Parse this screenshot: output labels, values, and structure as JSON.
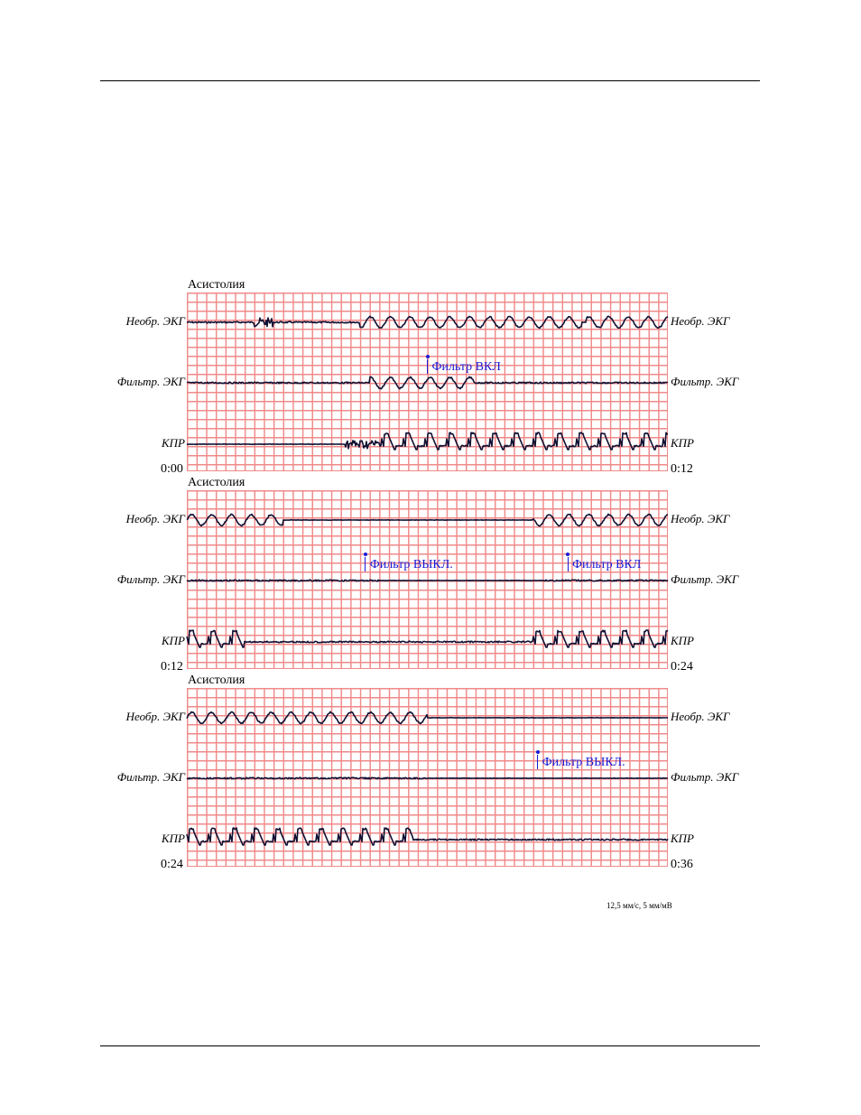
{
  "speed_label": "12,5 мм/с, 5 мм/мВ",
  "strips": [
    {
      "rhythm": "Асистолия",
      "start_time": "0:00",
      "end_time": "0:12",
      "leads": [
        "Необр. ЭКГ",
        "Фильтр. ЭКГ",
        "КПР"
      ],
      "markers": [
        {
          "text": "Фильтр ВКЛ",
          "time_s": 6.0
        }
      ]
    },
    {
      "rhythm": "Асистолия",
      "start_time": "0:12",
      "end_time": "0:24",
      "leads": [
        "Необр. ЭКГ",
        "Фильтр. ЭКГ",
        "КПР"
      ],
      "markers": [
        {
          "text": "Фильтр ВЫКЛ.",
          "time_s": 4.45
        },
        {
          "text": "Фильтр ВКЛ",
          "time_s": 9.5
        }
      ]
    },
    {
      "rhythm": "Асистолия",
      "start_time": "0:24",
      "end_time": "0:36",
      "leads": [
        "Необр. ЭКГ",
        "Фильтр. ЭКГ",
        "КПР"
      ],
      "markers": [
        {
          "text": "Фильтр ВЫКЛ.",
          "time_s": 8.75
        }
      ]
    }
  ],
  "colors": {
    "grid": "#f08a8a",
    "trace": "#111133",
    "marker": "#1a1ad6"
  }
}
